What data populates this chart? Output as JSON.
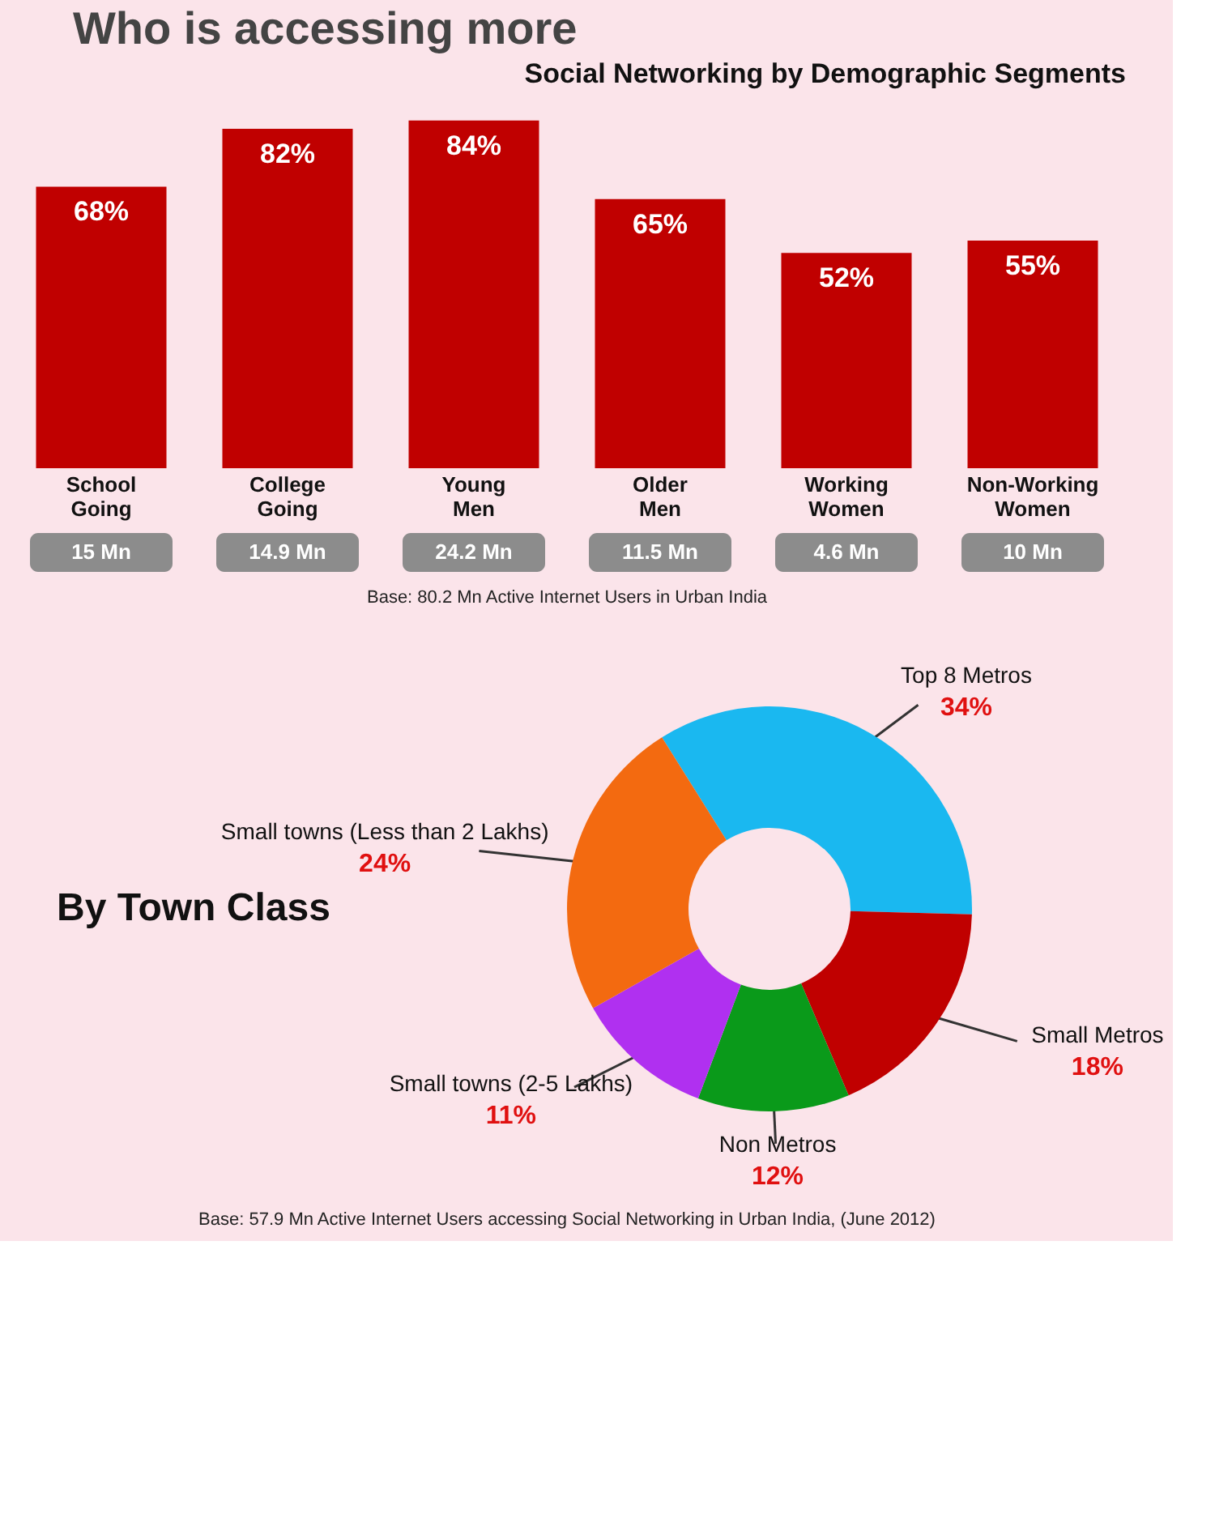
{
  "chart_data": [
    {
      "type": "bar",
      "title": "Who is accessing more",
      "subtitle": "Social Networking by Demographic Segments",
      "categories": [
        "School Going",
        "College Going",
        "Young Men",
        "Older Men",
        "Working Women",
        "Non-Working Women"
      ],
      "values": [
        68,
        82,
        84,
        65,
        52,
        55
      ],
      "color": "#c00000",
      "value_labels": [
        "68%",
        "82%",
        "84%",
        "65%",
        "52%",
        "55%"
      ],
      "annotations": [
        "15 Mn",
        "14.9 Mn",
        "24.2 Mn",
        "11.5 Mn",
        "4.6 Mn",
        "10 Mn",
        "Base: 80.2 Mn Active Internet Users in Urban India"
      ]
    },
    {
      "type": "donut",
      "title": "By Town Class",
      "categories": [
        "Top 8 Metros",
        "Small Metros",
        "Non Metros",
        "Small towns (2-5 Lakhs)",
        "Small towns (Less than 2 Lakhs)"
      ],
      "values": [
        34,
        18,
        12,
        11,
        24
      ],
      "colors": [
        "#1ab8f0",
        "#c00000",
        "#0a9a1a",
        "#b030f0",
        "#f36a10"
      ],
      "value_labels": [
        "34%",
        "18%",
        "12%",
        "11%",
        "24%"
      ],
      "annotations": [
        "Base: 57.9 Mn Active Internet Users accessing Social Networking in Urban India, (June 2012)"
      ]
    }
  ]
}
